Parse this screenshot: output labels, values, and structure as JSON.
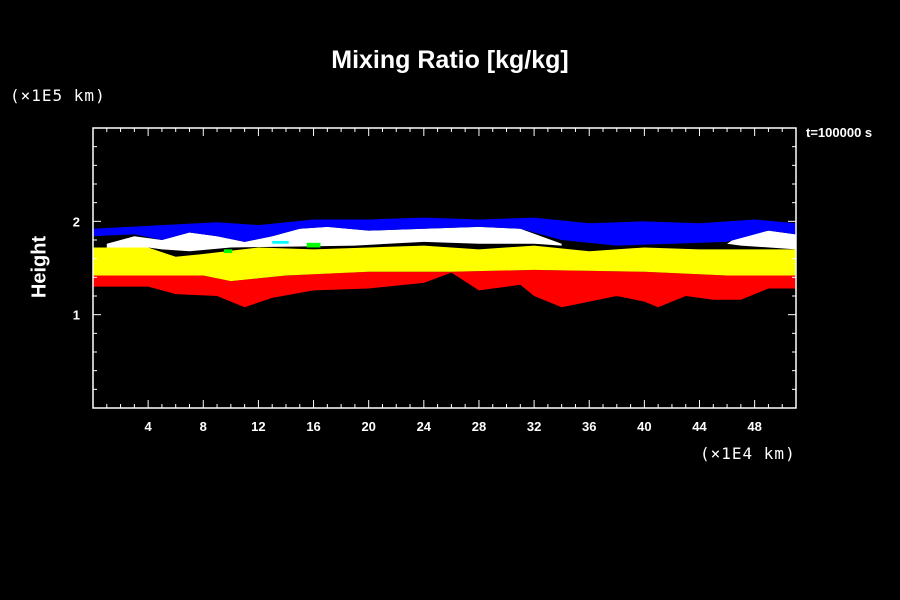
{
  "chart_data": {
    "type": "heatmap",
    "title": "Mixing Ratio [kg/kg]",
    "ylabel": "Height",
    "y_unit_label": "(×1E5 km)",
    "x_unit_label": "(×1E4 km)",
    "time_label": "t=100000 s",
    "xlim": [
      0,
      51
    ],
    "ylim": [
      0,
      3
    ],
    "x_ticks": [
      "4",
      "8",
      "12",
      "16",
      "20",
      "24",
      "28",
      "32",
      "36",
      "40",
      "44",
      "48"
    ],
    "y_ticks": [
      "1",
      "2"
    ],
    "colors": {
      "background": "#000000",
      "red": "#ff0000",
      "yellow": "#ffff00",
      "white": "#ffffff",
      "blue": "#0000ff",
      "green": "#00ff00",
      "cyan": "#00ffff"
    },
    "bands": [
      {
        "color": "red",
        "bottom": [
          [
            0,
            1.3
          ],
          [
            4,
            1.3
          ],
          [
            6,
            1.22
          ],
          [
            9,
            1.2
          ],
          [
            11,
            1.08
          ],
          [
            13,
            1.18
          ],
          [
            16,
            1.26
          ],
          [
            20,
            1.28
          ],
          [
            24,
            1.34
          ],
          [
            26,
            1.45
          ],
          [
            28,
            1.26
          ],
          [
            31,
            1.32
          ],
          [
            32,
            1.2
          ],
          [
            34,
            1.08
          ],
          [
            36,
            1.14
          ],
          [
            38,
            1.2
          ],
          [
            40,
            1.14
          ],
          [
            41,
            1.08
          ],
          [
            43,
            1.2
          ],
          [
            45,
            1.16
          ],
          [
            47,
            1.16
          ],
          [
            49,
            1.28
          ],
          [
            51,
            1.28
          ]
        ],
        "top": [
          [
            0,
            1.42
          ],
          [
            8,
            1.42
          ],
          [
            10,
            1.36
          ],
          [
            14,
            1.42
          ],
          [
            20,
            1.46
          ],
          [
            26,
            1.46
          ],
          [
            32,
            1.48
          ],
          [
            40,
            1.46
          ],
          [
            46,
            1.42
          ],
          [
            51,
            1.42
          ]
        ]
      },
      {
        "color": "yellow",
        "bottom": [
          [
            0,
            1.42
          ],
          [
            8,
            1.42
          ],
          [
            10,
            1.36
          ],
          [
            14,
            1.42
          ],
          [
            20,
            1.46
          ],
          [
            26,
            1.46
          ],
          [
            32,
            1.48
          ],
          [
            40,
            1.46
          ],
          [
            46,
            1.42
          ],
          [
            51,
            1.42
          ]
        ],
        "top": [
          [
            0,
            1.72
          ],
          [
            4,
            1.72
          ],
          [
            6,
            1.62
          ],
          [
            8,
            1.65
          ],
          [
            12,
            1.72
          ],
          [
            16,
            1.7
          ],
          [
            20,
            1.72
          ],
          [
            24,
            1.74
          ],
          [
            28,
            1.7
          ],
          [
            32,
            1.74
          ],
          [
            36,
            1.68
          ],
          [
            40,
            1.72
          ],
          [
            44,
            1.7
          ],
          [
            48,
            1.7
          ],
          [
            51,
            1.7
          ]
        ]
      },
      {
        "color": "white",
        "bottom": [
          [
            1,
            1.72
          ],
          [
            4,
            1.72
          ],
          [
            5,
            1.7
          ],
          [
            7,
            1.68
          ],
          [
            10,
            1.72
          ],
          [
            15,
            1.73
          ],
          [
            19,
            1.74
          ],
          [
            24,
            1.78
          ],
          [
            28,
            1.76
          ],
          [
            32,
            1.76
          ],
          [
            34,
            1.74
          ]
        ],
        "top": [
          [
            1,
            1.76
          ],
          [
            3,
            1.84
          ],
          [
            5,
            1.8
          ],
          [
            7,
            1.88
          ],
          [
            9,
            1.84
          ],
          [
            11,
            1.78
          ],
          [
            13,
            1.84
          ],
          [
            15,
            1.92
          ],
          [
            17,
            1.94
          ],
          [
            20,
            1.9
          ],
          [
            24,
            1.92
          ],
          [
            28,
            1.94
          ],
          [
            31,
            1.92
          ],
          [
            34,
            1.76
          ]
        ]
      },
      {
        "color": "white",
        "bottom": [
          [
            47,
            1.74
          ],
          [
            51,
            1.7
          ]
        ],
        "top": [
          [
            46,
            1.76
          ],
          [
            47,
            1.86
          ],
          [
            49,
            1.9
          ],
          [
            51,
            1.86
          ]
        ]
      },
      {
        "color": "blue",
        "bottom": [
          [
            0,
            1.84
          ],
          [
            3,
            1.86
          ],
          [
            5,
            1.8
          ],
          [
            7,
            1.88
          ],
          [
            9,
            1.84
          ],
          [
            11,
            1.78
          ],
          [
            13,
            1.84
          ],
          [
            15,
            1.92
          ],
          [
            17,
            1.94
          ],
          [
            20,
            1.9
          ],
          [
            24,
            1.92
          ],
          [
            28,
            1.94
          ],
          [
            31,
            1.92
          ],
          [
            34,
            1.8
          ],
          [
            38,
            1.74
          ],
          [
            42,
            1.76
          ],
          [
            46,
            1.78
          ],
          [
            49,
            1.9
          ],
          [
            51,
            1.86
          ]
        ],
        "top": [
          [
            0,
            1.92
          ],
          [
            5,
            1.96
          ],
          [
            9,
            1.99
          ],
          [
            12,
            1.96
          ],
          [
            16,
            2.02
          ],
          [
            20,
            2.02
          ],
          [
            24,
            2.04
          ],
          [
            28,
            2.02
          ],
          [
            32,
            2.04
          ],
          [
            36,
            1.98
          ],
          [
            40,
            2.0
          ],
          [
            44,
            1.98
          ],
          [
            48,
            2.02
          ],
          [
            51,
            1.98
          ]
        ]
      }
    ],
    "spots": [
      {
        "color": "green",
        "x": 15.5,
        "y": 1.72,
        "w": 1.0,
        "h": 0.05
      },
      {
        "color": "cyan",
        "x": 13.0,
        "y": 1.76,
        "w": 1.2,
        "h": 0.03
      },
      {
        "color": "green",
        "x": 9.5,
        "y": 1.66,
        "w": 0.6,
        "h": 0.04
      }
    ]
  }
}
